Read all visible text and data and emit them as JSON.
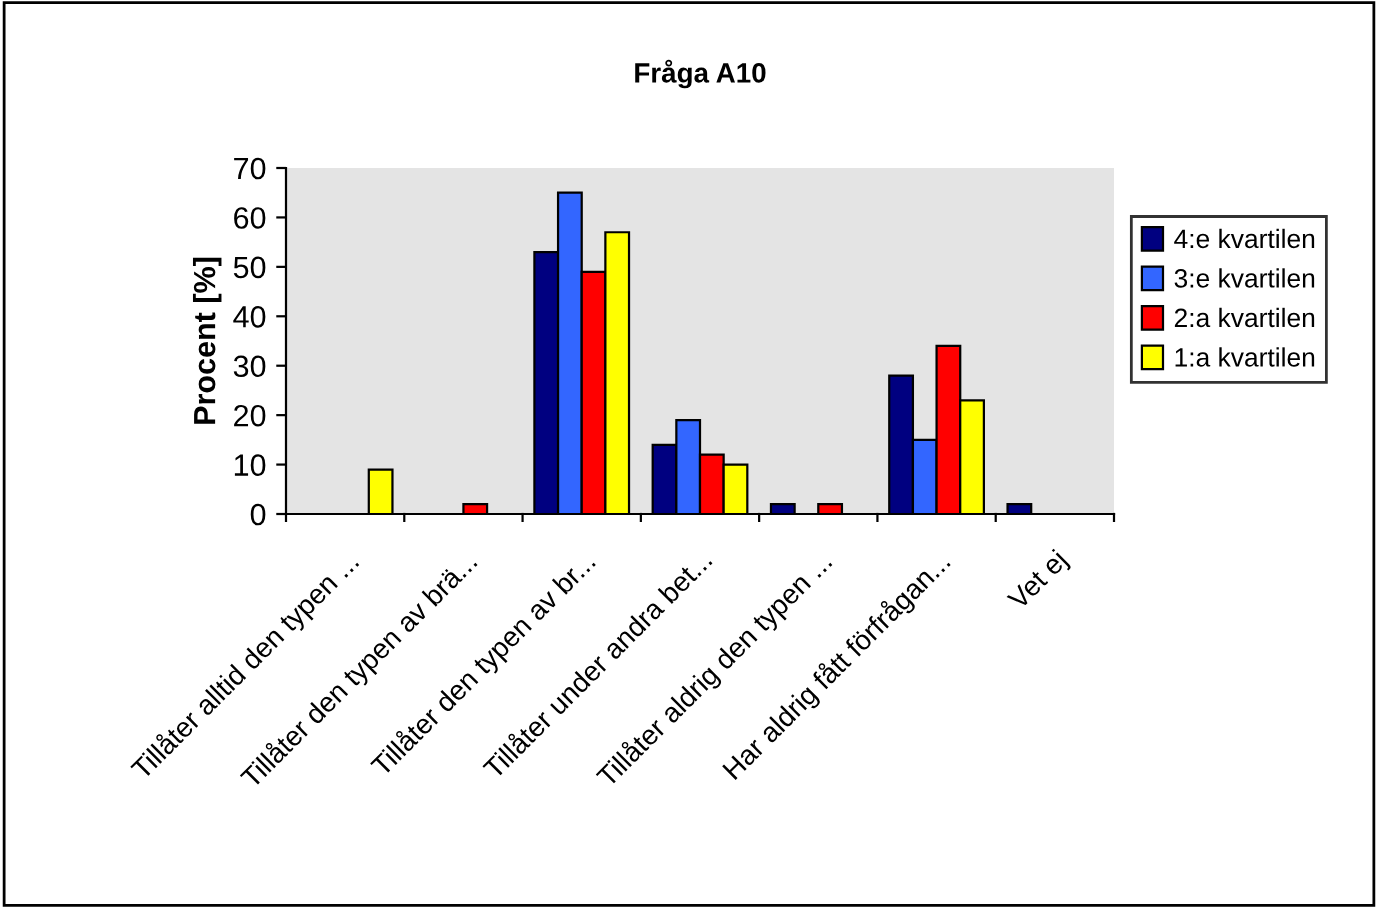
{
  "chart_data": {
    "type": "bar",
    "title": "Fråga A10",
    "ylabel": "Procent [%]",
    "categories": [
      "Tillåter alltid den typen ...",
      "Tillåter den typen av brä...",
      "Tillåter den typen av br...",
      "Tillåter under andra bet...",
      "Tillåter aldrig den typen ...",
      "Har aldrig fått förfrågan...",
      "Vet ej"
    ],
    "series": [
      {
        "name": "4:e kvartilen",
        "color": "#000080",
        "values": [
          null,
          null,
          53,
          14,
          2,
          28,
          2
        ]
      },
      {
        "name": "3:e kvartilen",
        "color": "#3366ff",
        "values": [
          null,
          null,
          65,
          19,
          null,
          15,
          null
        ]
      },
      {
        "name": "2:a kvartilen",
        "color": "#ff0000",
        "values": [
          null,
          2,
          49,
          12,
          2,
          34,
          null
        ]
      },
      {
        "name": "1:a kvartilen",
        "color": "#ffff00",
        "values": [
          9,
          null,
          57,
          10,
          null,
          23,
          null
        ]
      }
    ],
    "ylim": [
      0,
      70
    ],
    "yticks": [
      0,
      10,
      20,
      30,
      40,
      50,
      60,
      70
    ],
    "grid": false,
    "legend": "right"
  }
}
